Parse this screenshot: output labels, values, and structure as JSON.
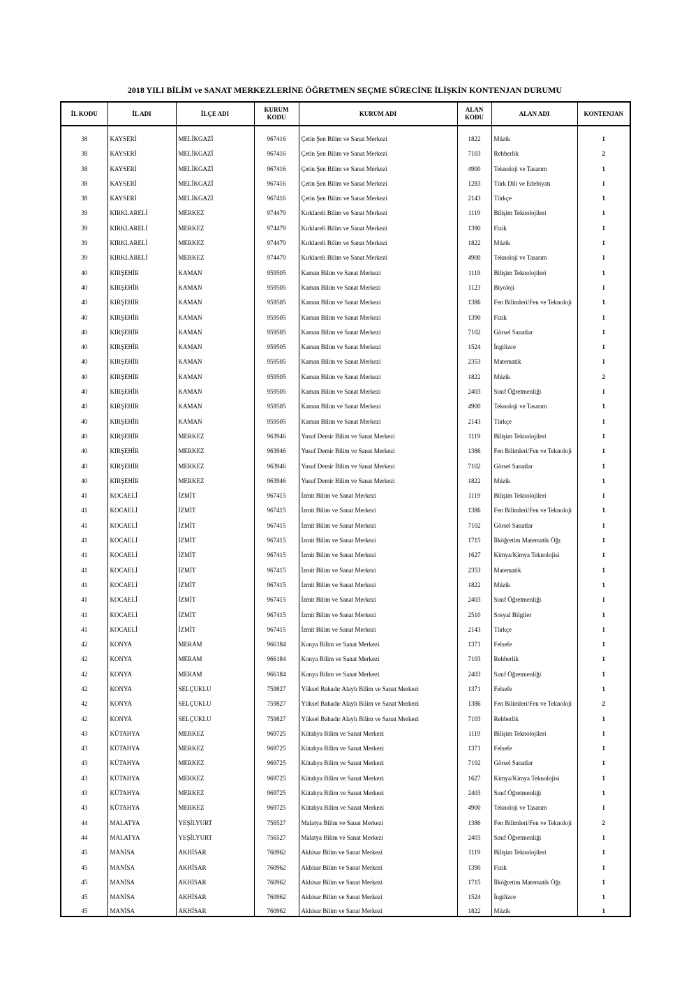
{
  "title": "2018 YILI BİLİM ve SANAT MERKEZLERİNE ÖĞRETMEN SEÇME SÜRECİNE İLİŞKİN KONTENJAN DURUMU",
  "table": {
    "headers": [
      "İL KODU",
      "İL ADI",
      "İLÇE ADI",
      "KURUM KODU",
      "KURUM ADI",
      "ALAN KODU",
      "ALAN ADI",
      "KONTENJAN"
    ],
    "rows": [
      [
        38,
        "KAYSERİ",
        "MELİKGAZİ",
        967416,
        "Çetin Şen Bilim ve Sanat Merkezi",
        1822,
        "Müzik",
        1
      ],
      [
        38,
        "KAYSERİ",
        "MELİKGAZİ",
        967416,
        "Çetin Şen Bilim ve Sanat Merkezi",
        7103,
        "Rehberlik",
        2
      ],
      [
        38,
        "KAYSERİ",
        "MELİKGAZİ",
        967416,
        "Çetin Şen Bilim ve Sanat Merkezi",
        4900,
        "Teknoloji ve Tasarım",
        1
      ],
      [
        38,
        "KAYSERİ",
        "MELİKGAZİ",
        967416,
        "Çetin Şen Bilim ve Sanat Merkezi",
        1283,
        "Türk Dili ve Edebiyatı",
        1
      ],
      [
        38,
        "KAYSERİ",
        "MELİKGAZİ",
        967416,
        "Çetin Şen Bilim ve Sanat Merkezi",
        2143,
        "Türkçe",
        1
      ],
      [
        39,
        "KIRKLARELİ",
        "MERKEZ",
        974479,
        "Kırklareli Bilim ve Sanat Merkezi",
        1119,
        "Bilişim Teknolojileri",
        1
      ],
      [
        39,
        "KIRKLARELİ",
        "MERKEZ",
        974479,
        "Kırklareli Bilim ve Sanat Merkezi",
        1390,
        "Fizik",
        1
      ],
      [
        39,
        "KIRKLARELİ",
        "MERKEZ",
        974479,
        "Kırklareli Bilim ve Sanat Merkezi",
        1822,
        "Müzik",
        1
      ],
      [
        39,
        "KIRKLARELİ",
        "MERKEZ",
        974479,
        "Kırklareli Bilim ve Sanat Merkezi",
        4900,
        "Teknoloji ve Tasarım",
        1
      ],
      [
        40,
        "KIRŞEHİR",
        "KAMAN",
        959505,
        "Kaman Bilim ve Sanat Merkezi",
        1119,
        "Bilişim Teknolojileri",
        1
      ],
      [
        40,
        "KIRŞEHİR",
        "KAMAN",
        959505,
        "Kaman Bilim ve Sanat Merkezi",
        1123,
        "Biyoloji",
        1
      ],
      [
        40,
        "KIRŞEHİR",
        "KAMAN",
        959505,
        "Kaman Bilim ve Sanat Merkezi",
        1386,
        "Fen Bilimleri/Fen ve Teknoloji",
        1
      ],
      [
        40,
        "KIRŞEHİR",
        "KAMAN",
        959505,
        "Kaman Bilim ve Sanat Merkezi",
        1390,
        "Fizik",
        1
      ],
      [
        40,
        "KIRŞEHİR",
        "KAMAN",
        959505,
        "Kaman Bilim ve Sanat Merkezi",
        7102,
        "Görsel Sanatlar",
        1
      ],
      [
        40,
        "KIRŞEHİR",
        "KAMAN",
        959505,
        "Kaman Bilim ve Sanat Merkezi",
        1524,
        "İngilizce",
        1
      ],
      [
        40,
        "KIRŞEHİR",
        "KAMAN",
        959505,
        "Kaman Bilim ve Sanat Merkezi",
        2353,
        "Matematik",
        1
      ],
      [
        40,
        "KIRŞEHİR",
        "KAMAN",
        959505,
        "Kaman Bilim ve Sanat Merkezi",
        1822,
        "Müzik",
        2
      ],
      [
        40,
        "KIRŞEHİR",
        "KAMAN",
        959505,
        "Kaman Bilim ve Sanat Merkezi",
        2403,
        "Sınıf Öğretmenliği",
        1
      ],
      [
        40,
        "KIRŞEHİR",
        "KAMAN",
        959505,
        "Kaman Bilim ve Sanat Merkezi",
        4900,
        "Teknoloji ve Tasarım",
        1
      ],
      [
        40,
        "KIRŞEHİR",
        "KAMAN",
        959505,
        "Kaman Bilim ve Sanat Merkezi",
        2143,
        "Türkçe",
        1
      ],
      [
        40,
        "KIRŞEHİR",
        "MERKEZ",
        963946,
        "Yusuf Demir Bilim ve Sanat Merkezi",
        1119,
        "Bilişim Teknolojileri",
        1
      ],
      [
        40,
        "KIRŞEHİR",
        "MERKEZ",
        963946,
        "Yusuf Demir Bilim ve Sanat Merkezi",
        1386,
        "Fen Bilimleri/Fen ve Teknoloji",
        1
      ],
      [
        40,
        "KIRŞEHİR",
        "MERKEZ",
        963946,
        "Yusuf Demir Bilim ve Sanat Merkezi",
        7102,
        "Görsel Sanatlar",
        1
      ],
      [
        40,
        "KIRŞEHİR",
        "MERKEZ",
        963946,
        "Yusuf Demir Bilim ve Sanat Merkezi",
        1822,
        "Müzik",
        1
      ],
      [
        41,
        "KOCAELİ",
        "İZMİT",
        967415,
        "İzmit Bilim ve Sanat Merkezi",
        1119,
        "Bilişim Teknolojileri",
        1
      ],
      [
        41,
        "KOCAELİ",
        "İZMİT",
        967415,
        "İzmit Bilim ve Sanat Merkezi",
        1386,
        "Fen Bilimleri/Fen ve Teknoloji",
        1
      ],
      [
        41,
        "KOCAELİ",
        "İZMİT",
        967415,
        "İzmit Bilim ve Sanat Merkezi",
        7102,
        "Görsel Sanatlar",
        1
      ],
      [
        41,
        "KOCAELİ",
        "İZMİT",
        967415,
        "İzmit Bilim ve Sanat Merkezi",
        1715,
        "İlköğretim Matematik Öğr.",
        1
      ],
      [
        41,
        "KOCAELİ",
        "İZMİT",
        967415,
        "İzmit Bilim ve Sanat Merkezi",
        1627,
        "Kimya/Kimya Teknolojisi",
        1
      ],
      [
        41,
        "KOCAELİ",
        "İZMİT",
        967415,
        "İzmit Bilim ve Sanat Merkezi",
        2353,
        "Matematik",
        1
      ],
      [
        41,
        "KOCAELİ",
        "İZMİT",
        967415,
        "İzmit Bilim ve Sanat Merkezi",
        1822,
        "Müzik",
        1
      ],
      [
        41,
        "KOCAELİ",
        "İZMİT",
        967415,
        "İzmit Bilim ve Sanat Merkezi",
        2403,
        "Sınıf Öğretmenliği",
        1
      ],
      [
        41,
        "KOCAELİ",
        "İZMİT",
        967415,
        "İzmit Bilim ve Sanat Merkezi",
        2510,
        "Sosyal Bilgiler",
        1
      ],
      [
        41,
        "KOCAELİ",
        "İZMİT",
        967415,
        "İzmit Bilim ve Sanat Merkezi",
        2143,
        "Türkçe",
        1
      ],
      [
        42,
        "KONYA",
        "MERAM",
        966184,
        "Konya Bilim ve Sanat Merkezi",
        1371,
        "Felsefe",
        1
      ],
      [
        42,
        "KONYA",
        "MERAM",
        966184,
        "Konya Bilim ve Sanat Merkezi",
        7103,
        "Rehberlik",
        1
      ],
      [
        42,
        "KONYA",
        "MERAM",
        966184,
        "Konya Bilim ve Sanat Merkezi",
        2403,
        "Sınıf Öğretmenliği",
        1
      ],
      [
        42,
        "KONYA",
        "SELÇUKLU",
        759827,
        "Yüksel Bahadır Alaylı Bilim ve Sanat Merkezi",
        1371,
        "Felsefe",
        1
      ],
      [
        42,
        "KONYA",
        "SELÇUKLU",
        759827,
        "Yüksel Bahadır Alaylı Bilim ve Sanat Merkezi",
        1386,
        "Fen Bilimleri/Fen ve Teknoloji",
        2
      ],
      [
        42,
        "KONYA",
        "SELÇUKLU",
        759827,
        "Yüksel Bahadır Alaylı Bilim ve Sanat Merkezi",
        7103,
        "Rehberlik",
        1
      ],
      [
        43,
        "KÜTAHYA",
        "MERKEZ",
        969725,
        "Kütahya Bilim ve Sanat Merkezi",
        1119,
        "Bilişim Teknolojileri",
        1
      ],
      [
        43,
        "KÜTAHYA",
        "MERKEZ",
        969725,
        "Kütahya Bilim ve Sanat Merkezi",
        1371,
        "Felsefe",
        1
      ],
      [
        43,
        "KÜTAHYA",
        "MERKEZ",
        969725,
        "Kütahya Bilim ve Sanat Merkezi",
        7102,
        "Görsel Sanatlar",
        1
      ],
      [
        43,
        "KÜTAHYA",
        "MERKEZ",
        969725,
        "Kütahya Bilim ve Sanat Merkezi",
        1627,
        "Kimya/Kimya Teknolojisi",
        1
      ],
      [
        43,
        "KÜTAHYA",
        "MERKEZ",
        969725,
        "Kütahya Bilim ve Sanat Merkezi",
        2403,
        "Sınıf Öğretmenliği",
        1
      ],
      [
        43,
        "KÜTAHYA",
        "MERKEZ",
        969725,
        "Kütahya Bilim ve Sanat Merkezi",
        4900,
        "Teknoloji ve Tasarım",
        1
      ],
      [
        44,
        "MALATYA",
        "YEŞİLYURT",
        756527,
        "Malatya Bilim ve Sanat Merkezi",
        1386,
        "Fen Bilimleri/Fen ve Teknoloji",
        2
      ],
      [
        44,
        "MALATYA",
        "YEŞİLYURT",
        756527,
        "Malatya Bilim ve Sanat Merkezi",
        2403,
        "Sınıf Öğretmenliği",
        1
      ],
      [
        45,
        "MANİSA",
        "AKHİSAR",
        760962,
        "Akhisar Bilim ve Sanat Merkezi",
        1119,
        "Bilişim Teknolojileri",
        1
      ],
      [
        45,
        "MANİSA",
        "AKHİSAR",
        760962,
        "Akhisar Bilim ve Sanat Merkezi",
        1390,
        "Fizik",
        1
      ],
      [
        45,
        "MANİSA",
        "AKHİSAR",
        760962,
        "Akhisar Bilim ve Sanat Merkezi",
        1715,
        "İlköğretim Matematik Öğr.",
        1
      ],
      [
        45,
        "MANİSA",
        "AKHİSAR",
        760962,
        "Akhisar Bilim ve Sanat Merkezi",
        1524,
        "İngilizce",
        1
      ],
      [
        45,
        "MANİSA",
        "AKHİSAR",
        760962,
        "Akhisar Bilim ve Sanat Merkezi",
        1822,
        "Müzik",
        1
      ]
    ]
  }
}
